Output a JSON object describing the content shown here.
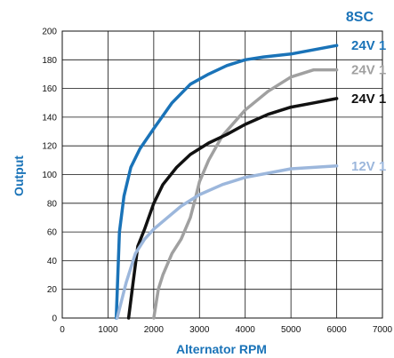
{
  "chart_data": {
    "type": "line",
    "top_label": "8SC",
    "xlabel": "Alternator RPM",
    "ylabel": "Output",
    "xlim": [
      0,
      7000
    ],
    "ylim": [
      0,
      200
    ],
    "xticks": [
      "0",
      "1000",
      "2000",
      "3000",
      "4000",
      "5000",
      "6000",
      "7000"
    ],
    "yticks": [
      "0",
      "20",
      "40",
      "60",
      "80",
      "100",
      "120",
      "140",
      "160",
      "180",
      "200"
    ],
    "grid": true,
    "series": [
      {
        "color": "#1a73b8",
        "end_label": "24V 1",
        "label_color": "#1a73b8",
        "x": [
          1180,
          1250,
          1350,
          1500,
          1700,
          2000,
          2400,
          2800,
          3200,
          3600,
          4000,
          4400,
          5000,
          6000
        ],
        "y": [
          0,
          60,
          85,
          105,
          118,
          132,
          150,
          163,
          170,
          176,
          180,
          182,
          184,
          190
        ]
      },
      {
        "color": "#a0a0a0",
        "end_label": "24V 1",
        "label_color": "#a0a0a0",
        "x": [
          2000,
          2100,
          2200,
          2400,
          2600,
          2800,
          2900,
          3000,
          3200,
          3500,
          4000,
          4500,
          5000,
          5500,
          6000
        ],
        "y": [
          0,
          20,
          30,
          45,
          55,
          70,
          82,
          95,
          110,
          127,
          145,
          158,
          168,
          173,
          173
        ]
      },
      {
        "color": "#111111",
        "end_label": "24V 1",
        "label_color": "#111111",
        "x": [
          1450,
          1550,
          1650,
          1800,
          2000,
          2200,
          2500,
          2800,
          3200,
          3600,
          4000,
          4500,
          5000,
          5500,
          6000
        ],
        "y": [
          0,
          25,
          50,
          62,
          80,
          93,
          105,
          114,
          122,
          128,
          135,
          142,
          147,
          150,
          153
        ]
      },
      {
        "color": "#9cb7dc",
        "end_label": "12V 1",
        "label_color": "#9cb7dc",
        "x": [
          1200,
          1400,
          1600,
          1800,
          2000,
          2300,
          2600,
          3000,
          3500,
          4000,
          4500,
          5000,
          5500,
          6000
        ],
        "y": [
          0,
          25,
          45,
          55,
          62,
          70,
          78,
          86,
          93,
          98,
          101,
          104,
          105,
          106
        ]
      }
    ]
  }
}
